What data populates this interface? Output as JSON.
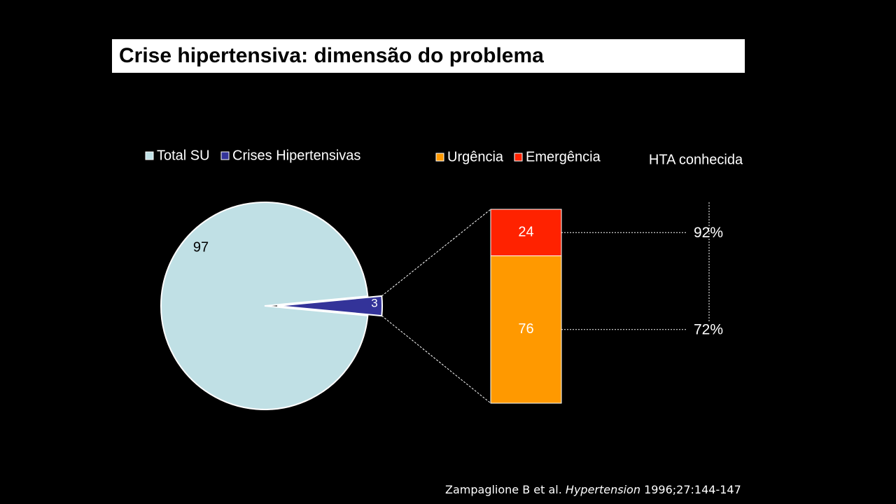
{
  "slide": {
    "title": "Crise hipertensiva: dimensão do problema",
    "citation": {
      "authors": "Zampaglione B et al.",
      "journal": "Hypertension",
      "details": "1996;27:144-147"
    }
  },
  "colors": {
    "background": "#000000",
    "total_su": "#c0e0e5",
    "crises": "#333399",
    "urgencia": "#ff9900",
    "emergencia": "#ff2200",
    "text": "#ffffff"
  },
  "chart_data": [
    {
      "type": "pie",
      "legend": [
        "Total SU",
        "Crises Hipertensivas"
      ],
      "legend_position": "top",
      "slices": [
        {
          "label": "Total SU",
          "value": 97,
          "text": "97"
        },
        {
          "label": "Crises Hipertensivas",
          "value": 3,
          "text": "3"
        }
      ]
    },
    {
      "type": "bar",
      "stacked": true,
      "legend": [
        "Urgência",
        "Emergência"
      ],
      "legend_position": "top",
      "series": [
        {
          "name": "Urgência",
          "value": 76,
          "text": "76"
        },
        {
          "name": "Emergência",
          "value": 24,
          "text": "24"
        }
      ],
      "ylim": [
        0,
        100
      ],
      "annotation": {
        "title": "HTA conhecida",
        "values": [
          {
            "series": "Emergência",
            "value": 92,
            "text": "92%"
          },
          {
            "series": "Urgência",
            "value": 72,
            "text": "72%"
          }
        ]
      }
    }
  ]
}
